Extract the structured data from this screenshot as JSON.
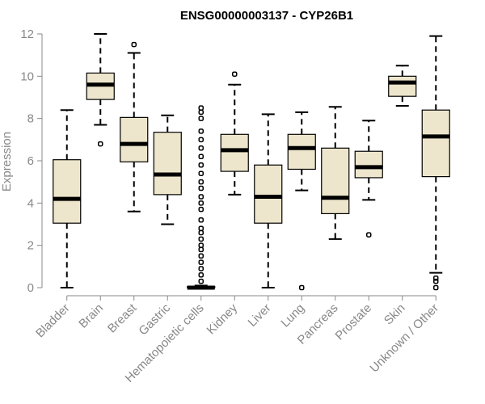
{
  "chart_data": {
    "type": "boxplot",
    "title": "ENSG00000003137 - CYP26B1",
    "xlabel": "",
    "ylabel": "Expression",
    "ylim": [
      0,
      12
    ],
    "yticks": [
      0,
      2,
      4,
      6,
      8,
      10,
      12
    ],
    "colors": {
      "box_fill": "#ede6cc",
      "stroke": "#000000",
      "axis": "#888888",
      "text": "#888888"
    },
    "categories": [
      "Bladder",
      "Brain",
      "Breast",
      "Gastric",
      "Hematopoietic cells",
      "Kidney",
      "Liver",
      "Lung",
      "Pancreas",
      "Prostate",
      "Skin",
      "Unknown / Other"
    ],
    "series": [
      {
        "name": "Bladder",
        "whisker_low": 0.0,
        "q1": 3.05,
        "median": 4.2,
        "q3": 6.05,
        "whisker_high": 8.4,
        "outliers": []
      },
      {
        "name": "Brain",
        "whisker_low": 7.7,
        "q1": 8.9,
        "median": 9.6,
        "q3": 10.15,
        "whisker_high": 12.0,
        "outliers": [
          6.8
        ]
      },
      {
        "name": "Breast",
        "whisker_low": 3.6,
        "q1": 5.95,
        "median": 6.8,
        "q3": 8.05,
        "whisker_high": 11.1,
        "outliers": [
          11.5
        ]
      },
      {
        "name": "Gastric",
        "whisker_low": 3.0,
        "q1": 4.4,
        "median": 5.35,
        "q3": 7.35,
        "whisker_high": 8.15,
        "outliers": []
      },
      {
        "name": "Hematopoietic cells",
        "whisker_low": 0.0,
        "q1": 0.0,
        "median": 0.0,
        "q3": 0.05,
        "whisker_high": 0.1,
        "outliers": [
          0.3,
          0.6,
          0.9,
          1.2,
          1.5,
          1.8,
          2.0,
          2.3,
          2.6,
          2.8,
          3.2,
          3.7,
          4.0,
          4.3,
          4.7,
          5.0,
          5.4,
          5.8,
          6.2,
          6.6,
          7.0,
          7.4,
          8.0,
          8.3,
          8.5
        ]
      },
      {
        "name": "Kidney",
        "whisker_low": 4.4,
        "q1": 5.5,
        "median": 6.5,
        "q3": 7.25,
        "whisker_high": 9.6,
        "outliers": [
          10.1
        ]
      },
      {
        "name": "Liver",
        "whisker_low": 0.0,
        "q1": 3.05,
        "median": 4.3,
        "q3": 5.8,
        "whisker_high": 8.2,
        "outliers": []
      },
      {
        "name": "Lung",
        "whisker_low": 4.6,
        "q1": 5.6,
        "median": 6.6,
        "q3": 7.25,
        "whisker_high": 8.3,
        "outliers": [
          0.0
        ]
      },
      {
        "name": "Pancreas",
        "whisker_low": 2.3,
        "q1": 3.5,
        "median": 4.25,
        "q3": 6.6,
        "whisker_high": 8.55,
        "outliers": []
      },
      {
        "name": "Prostate",
        "whisker_low": 4.15,
        "q1": 5.2,
        "median": 5.7,
        "q3": 6.45,
        "whisker_high": 7.9,
        "outliers": [
          2.5
        ]
      },
      {
        "name": "Skin",
        "whisker_low": 8.6,
        "q1": 9.05,
        "median": 9.7,
        "q3": 10.0,
        "whisker_high": 10.5,
        "outliers": []
      },
      {
        "name": "Unknown / Other",
        "whisker_low": 0.7,
        "q1": 5.25,
        "median": 7.15,
        "q3": 8.4,
        "whisker_high": 11.9,
        "outliers": [
          0.0,
          0.3,
          0.45
        ]
      }
    ]
  }
}
